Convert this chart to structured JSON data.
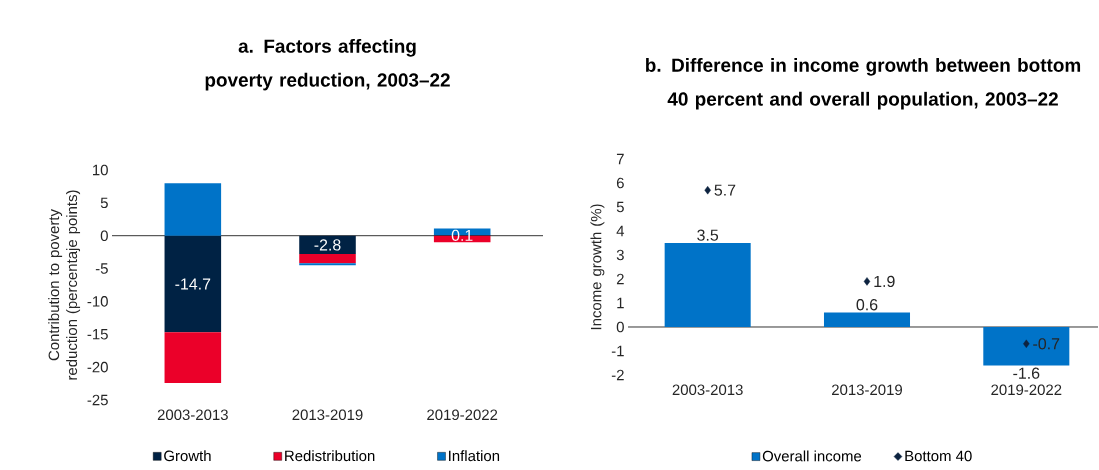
{
  "chart_data": [
    {
      "type": "bar",
      "title": "a. Factors affecting poverty reduction, 2003–22",
      "ylabel": "Contribution to poverty reduction (percentaje points)",
      "categories": [
        "2003-2013",
        "2013-2019",
        "2019-2022"
      ],
      "stacked": true,
      "series": [
        {
          "name": "Growth",
          "color": "#002244",
          "values": [
            -14.7,
            -2.8,
            0.1
          ],
          "value_labels": [
            "-14.7",
            "-2.8",
            "0.1"
          ]
        },
        {
          "name": "Redistribution",
          "color": "#eb0029",
          "values": [
            -7.7,
            -1.4,
            -1.0
          ]
        },
        {
          "name": "Inflation",
          "color": "#0073c8",
          "values": [
            8.0,
            -0.3,
            1.0
          ]
        }
      ],
      "ylim": [
        -25,
        10
      ],
      "yticks": [
        -25,
        -20,
        -15,
        -10,
        -5,
        0,
        5,
        10
      ],
      "legend": "bottom"
    },
    {
      "type": "bar",
      "title": "b. Difference in income growth between bottom 40 percent and overall population, 2003–22",
      "ylabel": "Income growth (%)",
      "categories": [
        "2003-2013",
        "2013-2019",
        "2019-2022"
      ],
      "series": [
        {
          "name": "Overall income",
          "color": "#0073c8",
          "values": [
            3.5,
            0.6,
            -1.6
          ]
        },
        {
          "name": "Bottom 40",
          "type": "scatter",
          "marker": "diamond",
          "color": "#0d2340",
          "values": [
            5.7,
            1.9,
            -0.7
          ]
        }
      ],
      "data_labels": true,
      "ylim": [
        -2,
        7
      ],
      "yticks": [
        -2,
        -1,
        0,
        1,
        2,
        3,
        4,
        5,
        6,
        7
      ],
      "legend": "bottom"
    }
  ]
}
